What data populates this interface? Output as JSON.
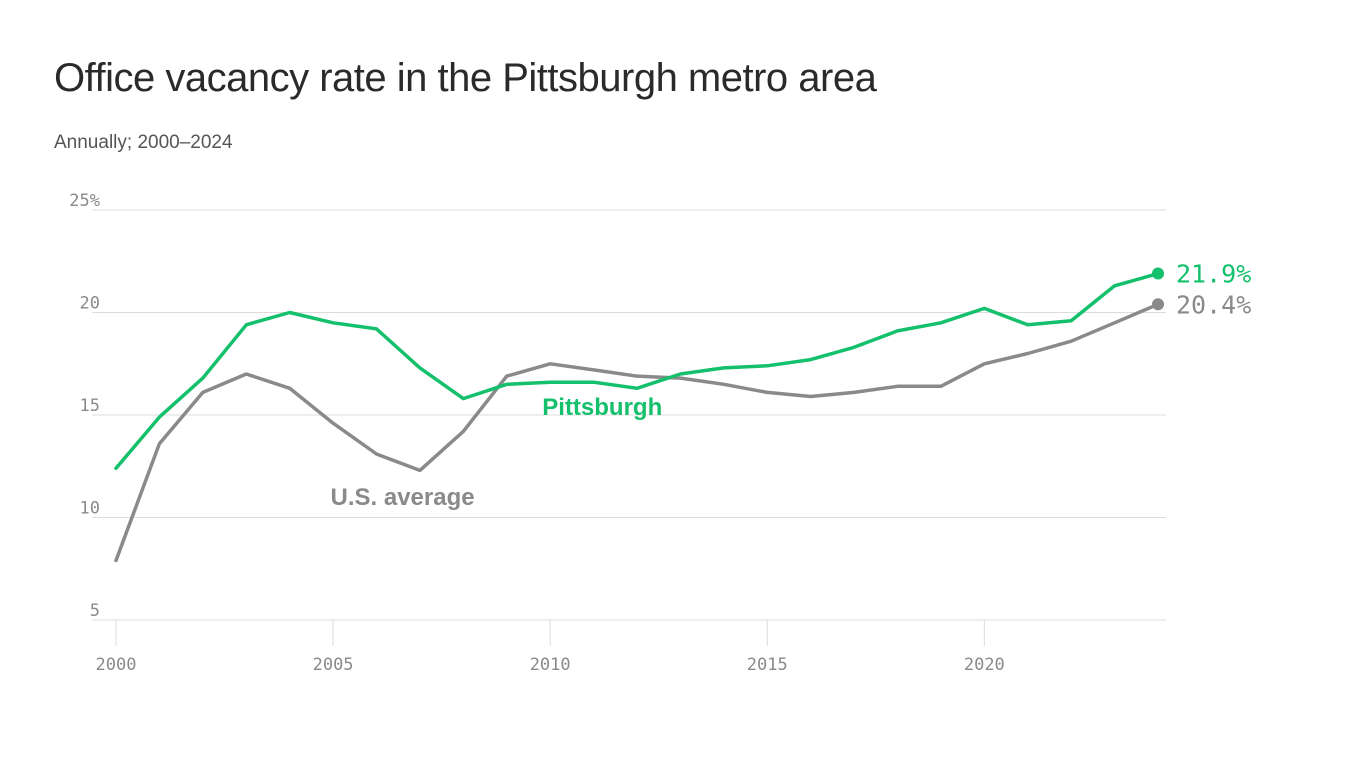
{
  "header": {
    "title": "Office vacancy rate in the Pittsburgh metro area",
    "subtitle": "Annually; 2000–2024"
  },
  "colors": {
    "pittsburgh": "#14c06b",
    "us_average": "#8a8a8a",
    "grid": "#dcdcdc",
    "tick_text": "#8a8a8a"
  },
  "chart_data": {
    "type": "line",
    "title": "Office vacancy rate in the Pittsburgh metro area",
    "subtitle": "Annually; 2000–2024",
    "xlabel": "",
    "ylabel": "",
    "xlim": [
      2000,
      2024
    ],
    "ylim": [
      5,
      25
    ],
    "grid": true,
    "legend": "inline labels",
    "x": [
      2000,
      2001,
      2002,
      2003,
      2004,
      2005,
      2006,
      2007,
      2008,
      2009,
      2010,
      2011,
      2012,
      2013,
      2014,
      2015,
      2016,
      2017,
      2018,
      2019,
      2020,
      2021,
      2022,
      2023,
      2024
    ],
    "x_ticks": [
      2000,
      2005,
      2010,
      2015,
      2020
    ],
    "x_tick_labels": [
      "2000",
      "2005",
      "2010",
      "2015",
      "2020"
    ],
    "y_ticks": [
      5,
      10,
      15,
      20,
      25
    ],
    "y_tick_labels": [
      "5",
      "10",
      "15",
      "20",
      "25%"
    ],
    "series": [
      {
        "name": "Pittsburgh",
        "color": "#14c06b",
        "values": [
          12.4,
          14.9,
          16.8,
          19.4,
          20.0,
          19.5,
          19.2,
          17.3,
          15.8,
          16.5,
          16.6,
          16.6,
          16.3,
          17.0,
          17.3,
          17.4,
          17.7,
          18.3,
          19.1,
          19.5,
          20.2,
          19.4,
          19.6,
          21.3,
          21.9
        ],
        "end_label": "21.9%"
      },
      {
        "name": "U.S. average",
        "color": "#8a8a8a",
        "values": [
          7.9,
          13.6,
          16.1,
          17.0,
          16.3,
          14.6,
          13.1,
          12.3,
          14.2,
          16.9,
          17.5,
          17.2,
          16.9,
          16.8,
          16.5,
          16.1,
          15.9,
          16.1,
          16.4,
          16.4,
          17.5,
          18.0,
          18.6,
          19.5,
          20.4
        ],
        "end_label": "20.4%"
      }
    ]
  }
}
